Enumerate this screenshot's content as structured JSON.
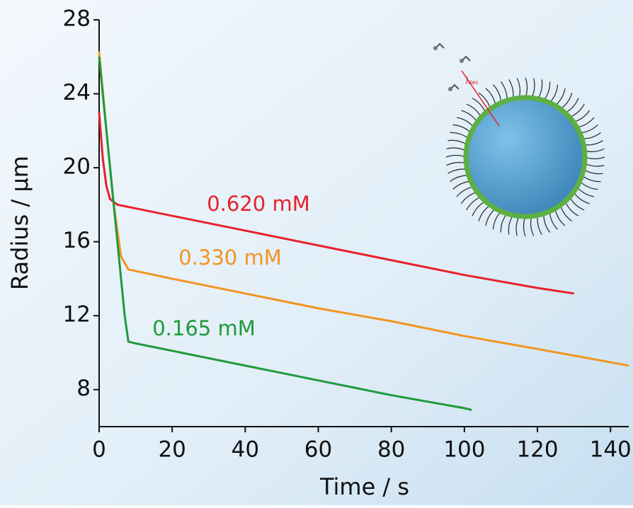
{
  "chart_data": {
    "type": "line",
    "x_label": "Time / s",
    "y_label": "Radius / µm",
    "xlim": [
      0,
      145
    ],
    "xticks": [
      0,
      20,
      40,
      60,
      80,
      100,
      120,
      140
    ],
    "ylim": [
      6,
      28
    ],
    "yticks": [
      8,
      12,
      16,
      20,
      24,
      28
    ],
    "series": [
      {
        "name": "0.620 mM",
        "color": "#e8212a",
        "x": [
          0,
          1,
          2,
          3,
          5,
          10,
          20,
          40,
          60,
          80,
          100,
          120,
          130
        ],
        "values": [
          23,
          20.5,
          19,
          18.3,
          18.0,
          17.8,
          17.4,
          16.6,
          15.8,
          15.0,
          14.2,
          13.5,
          13.2
        ]
      },
      {
        "name": "0.330 mM",
        "color": "#f39420",
        "x": [
          0,
          2,
          4,
          6,
          8,
          20,
          40,
          60,
          80,
          100,
          120,
          145
        ],
        "values": [
          26.3,
          22,
          18,
          15.2,
          14.5,
          14.0,
          13.2,
          12.4,
          11.7,
          10.9,
          10.2,
          9.3
        ]
      },
      {
        "name": "0.165 mM",
        "color": "#1f9a3a",
        "x": [
          0,
          4,
          7,
          8,
          10,
          20,
          40,
          60,
          80,
          100,
          102
        ],
        "values": [
          26,
          18,
          12,
          10.6,
          10.5,
          10.1,
          9.3,
          8.5,
          7.7,
          7.0,
          6.9
        ]
      }
    ],
    "inset_label": {
      "main": "J",
      "sub": "des"
    }
  }
}
